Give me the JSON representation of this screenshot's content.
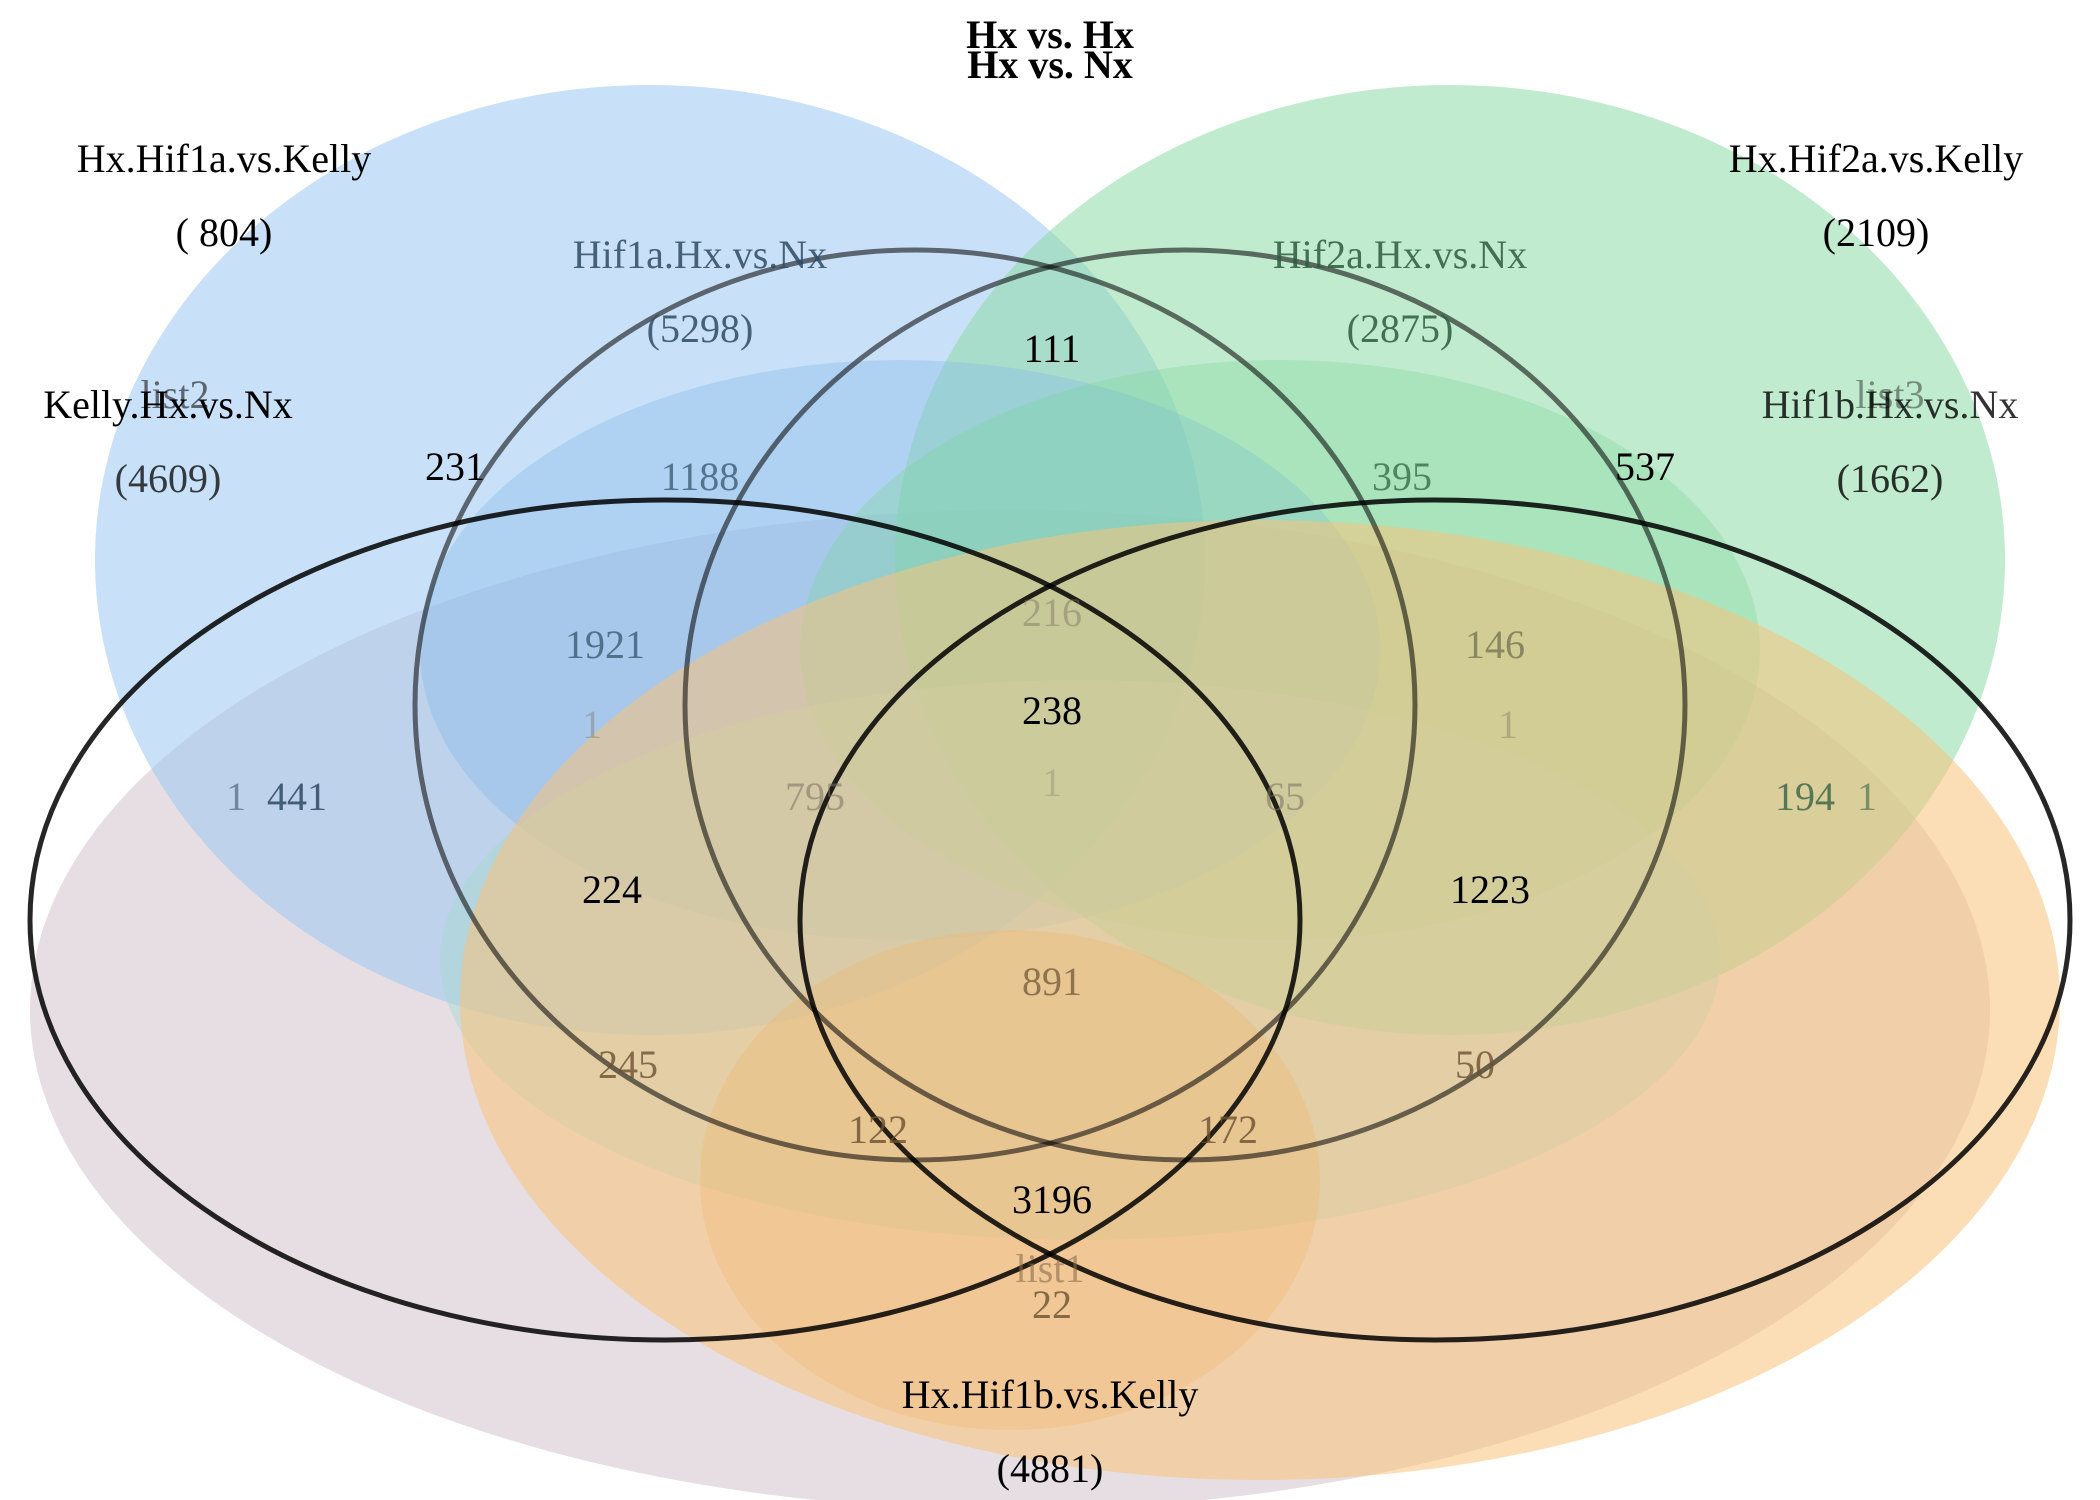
{
  "titles": [
    "Hx vs. Hx",
    "Hx vs. Nx"
  ],
  "sets": [
    {
      "id": "hif1a_kelly",
      "name": "Hx.Hif1a.vs.Kelly",
      "count": "( 804)",
      "color": "#9cc8f2"
    },
    {
      "id": "hif2a_kelly",
      "name": "Hx.Hif2a.vs.Kelly",
      "count": "(2109)",
      "color": "#8edaa6"
    },
    {
      "id": "kelly_hx_nx",
      "name": "Kelly.Hx.vs.Nx",
      "count": "(4609)",
      "color": "#000000"
    },
    {
      "id": "hif1b_hx_nx",
      "name": "Hif1b.Hx.vs.Nx",
      "count": "(1662)",
      "color": "#000000"
    },
    {
      "id": "hif1a_hx_nx",
      "name": "Hif1a.Hx.vs.Nx",
      "count": "(5298)",
      "color": "#2d4a63"
    },
    {
      "id": "hif2a_hx_nx",
      "name": "Hif2a.Hx.vs.Nx",
      "count": "(2875)",
      "color": "#2a5a3c"
    },
    {
      "id": "hif1b_kelly",
      "name": "Hx.Hif1b.vs.Kelly",
      "count": "(4881)",
      "color": "#f7c27a"
    }
  ],
  "ghost_labels": [
    "list2",
    "list3",
    "list1"
  ],
  "regions_strong": [
    "111",
    "231",
    "537",
    "238",
    "224",
    "1223",
    "3196",
    "441"
  ],
  "regions_faint": [
    "1188",
    "395",
    "1921",
    "216",
    "146",
    "1",
    "1",
    "1",
    "795",
    "65",
    "194",
    "1",
    "891",
    "245",
    "50",
    "122",
    "172",
    "22",
    "1"
  ],
  "colors": {
    "blue_fill": "#9cc8f2",
    "green_fill": "#8edaa6",
    "orange_fill": "#f7c27a",
    "mauve_fill": "#d9cdd2",
    "teal_fill": "#9fd8cc",
    "outline": "#000000"
  }
}
